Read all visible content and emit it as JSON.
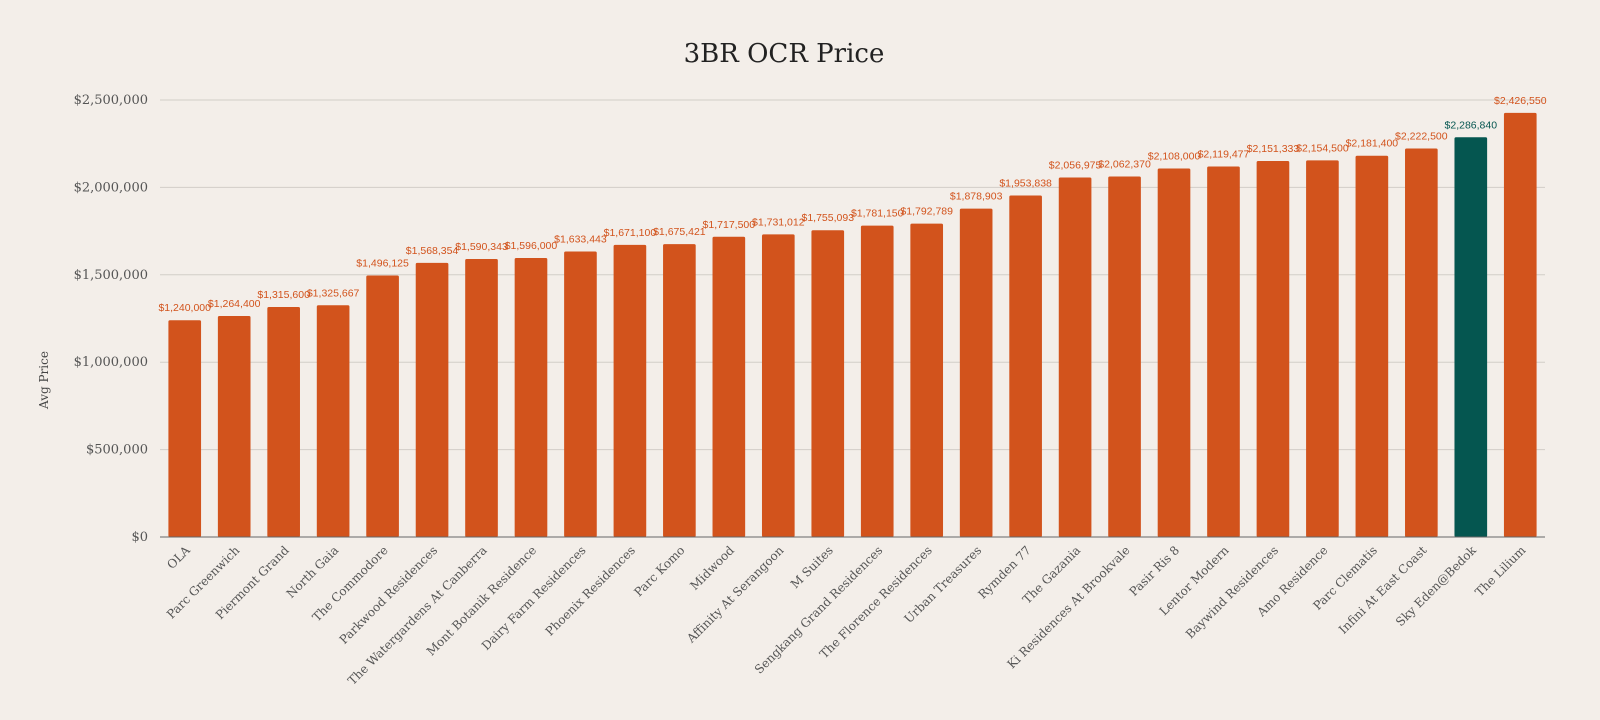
{
  "chart_data": {
    "type": "bar",
    "title": "3BR OCR Price",
    "xlabel": "",
    "ylabel": "Avg Price",
    "ylim": [
      0,
      2500000
    ],
    "yticks": [
      0,
      500000,
      1000000,
      1500000,
      2000000,
      2500000
    ],
    "ytick_labels": [
      "$0",
      "$500,000",
      "$1,000,000",
      "$1,500,000",
      "$2,000,000",
      "$2,500,000"
    ],
    "grid": true,
    "colors": {
      "default": "#d2531c",
      "highlight": "#055650",
      "background": "#f3eee9"
    },
    "highlight_category": "Sky Eden@Bedok",
    "categories": [
      "OLA",
      "Parc Greenwich",
      "Piermont Grand",
      "North Gaia",
      "The Commodore",
      "Parkwood Residences",
      "The Watergardens At Canberra",
      "Mont Botanik Residence",
      "Dairy Farm Residences",
      "Phoenix Residences",
      "Parc Komo",
      "Midwood",
      "Affinity At Serangoon",
      "M Suites",
      "Sengkang Grand Residences",
      "The Florence Residences",
      "Urban Treasures",
      "Rymden 77",
      "The Gazania",
      "Ki Residences At Brookvale",
      "Pasir Ris 8",
      "Lentor Modern",
      "Baywind Residences",
      "Amo Residence",
      "Parc Clematis",
      "Infini At East Coast",
      "Sky Eden@Bedok",
      "The Lilium"
    ],
    "values": [
      1240000,
      1264400,
      1315600,
      1325667,
      1496125,
      1568354,
      1590343,
      1596000,
      1633443,
      1671100,
      1675421,
      1717500,
      1731012,
      1755093,
      1781150,
      1792789,
      1878903,
      1953838,
      2056975,
      2062370,
      2108000,
      2119477,
      2151333,
      2154500,
      2181400,
      2222500,
      2286840,
      2426550
    ],
    "data_labels": [
      "$1,240,000",
      "$1,264,400",
      "$1,315,600",
      "$1,325,667",
      "$1,496,125",
      "$1,568,354",
      "$1,590,343",
      "$1,596,000",
      "$1,633,443",
      "$1,671,100",
      "$1,675,421",
      "$1,717,500",
      "$1,731,012",
      "$1,755,093",
      "$1,781,150",
      "$1,792,789",
      "$1,878,903",
      "$1,953,838",
      "$2,056,975",
      "$2,062,370",
      "$2,108,000",
      "$2,119,477",
      "$2,151,333",
      "$2,154,500",
      "$2,181,400",
      "$2,222,500",
      "$2,286,840",
      "$2,426,550"
    ]
  }
}
